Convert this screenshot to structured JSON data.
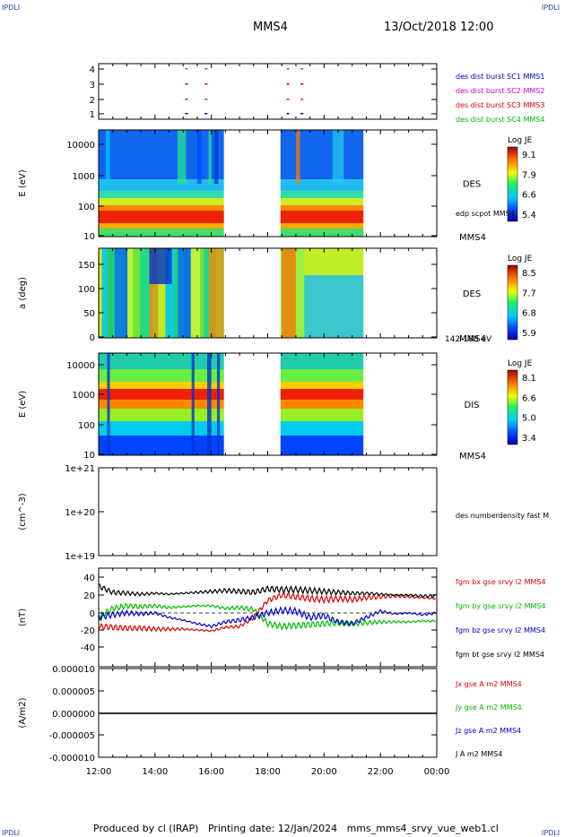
{
  "header": {
    "left_logo": "IPDLI",
    "right_logo": "IPDLI",
    "title": "MMS4",
    "datetime": "13/Oct/2018 12:00"
  },
  "footer": {
    "text": "Produced by cl (IRAP)   Printing date: 12/Jan/2024   mms_mms4_srvy_vue_web1.cl",
    "left_logo": "IPDLI",
    "right_logo": "IPDLI"
  },
  "time_axis": {
    "tick_labels": [
      "12:00",
      "14:00",
      "16:00",
      "18:00",
      "20:00",
      "22:00",
      "00:00"
    ],
    "range_hours": [
      12,
      24
    ]
  },
  "colors": {
    "mms1": "#0000cc",
    "mms2": "#cc00cc",
    "mms3": "#dd0000",
    "mms4": "#00bb00",
    "black": "#000000"
  },
  "chart_data": [
    {
      "id": "burst",
      "type": "scatter",
      "ylim": [
        0.5,
        4.5
      ],
      "yticks": [
        "1",
        "2",
        "3",
        "4"
      ],
      "series": [
        {
          "name": "des dist burst SC1 MMS1",
          "color": "#0000cc",
          "x": [
            15.1,
            15.8,
            18.7,
            19.2
          ],
          "y": [
            1,
            1,
            1,
            1
          ]
        },
        {
          "name": "des dist burst SC2 MMS2",
          "color": "#cc00cc",
          "x": [
            15.1,
            15.8,
            18.7,
            19.2
          ],
          "y": [
            2,
            2,
            2,
            2
          ]
        },
        {
          "name": "des dist burst SC3 MMS3",
          "color": "#dd0000",
          "x": [
            15.1,
            15.8,
            18.7,
            19.2
          ],
          "y": [
            3,
            3,
            3,
            3
          ]
        },
        {
          "name": "des dist burst SC4 MMS4",
          "color": "#00bb00",
          "x": [
            15.1,
            15.8,
            18.7,
            19.2
          ],
          "y": [
            4,
            4,
            4,
            4
          ]
        }
      ]
    },
    {
      "id": "des-energy",
      "type": "heatmap",
      "ylabel": "E (eV)",
      "yscale": "log",
      "ylim": [
        10,
        30000
      ],
      "yticks": [
        "10",
        "100",
        "1000",
        "10000"
      ],
      "label": "DES",
      "extra_label": "edp scpot MMS4",
      "sc_label": "MMS4",
      "colorbar": {
        "title": "Log JE",
        "ticks": [
          "9.1",
          "7.9",
          "6.6",
          "5.4"
        ],
        "range": [
          5.4,
          9.1
        ]
      },
      "data_gaps_hours": [
        [
          16.45,
          18.45
        ],
        [
          21.4,
          24
        ]
      ]
    },
    {
      "id": "des-pitch",
      "type": "heatmap",
      "ylabel": "a (deg)",
      "ylim": [
        0,
        180
      ],
      "yticks": [
        "0",
        "50",
        "100",
        "150"
      ],
      "label": "DES",
      "sc_label": "MMS4",
      "energy_band": "142-188 eV",
      "colorbar": {
        "title": "Log JE",
        "ticks": [
          "8.5",
          "7.7",
          "6.8",
          "5.9"
        ],
        "range": [
          5.9,
          8.5
        ]
      },
      "data_gaps_hours": [
        [
          16.45,
          18.45
        ],
        [
          21.4,
          24
        ]
      ]
    },
    {
      "id": "dis-energy",
      "type": "heatmap",
      "ylabel": "E (eV)",
      "yscale": "log",
      "ylim": [
        10,
        20000
      ],
      "yticks": [
        "10",
        "100",
        "1000",
        "10000"
      ],
      "label": "DIS",
      "sc_label": "MMS4",
      "colorbar": {
        "title": "Log JE",
        "ticks": [
          "8.1",
          "6.6",
          "5.0",
          "3.4"
        ],
        "range": [
          3.4,
          8.1
        ]
      },
      "data_gaps_hours": [
        [
          16.45,
          18.45
        ],
        [
          21.4,
          24
        ]
      ]
    },
    {
      "id": "density",
      "type": "line",
      "ylabel": "(cm^-3)",
      "yscale": "log",
      "ylim": [
        1e+19,
        1e+21
      ],
      "yticks": [
        "1e+19",
        "1e+20",
        "1e+21"
      ],
      "series": [
        {
          "name": "des numberdensity fast M",
          "color": "#000000",
          "x": [],
          "y": []
        }
      ]
    },
    {
      "id": "fgm",
      "type": "line",
      "ylabel": "(nT)",
      "ylim": [
        -45,
        50
      ],
      "yticks": [
        "40",
        "20",
        "0",
        "-20",
        "-40"
      ],
      "series": [
        {
          "name": "fgm bx gse srvy l2 MMS4",
          "color": "#dd0000",
          "x": [
            12,
            12.5,
            13,
            13.5,
            14,
            14.5,
            15,
            15.5,
            16,
            16.5,
            17,
            17.5,
            18,
            18.5,
            19,
            19.5,
            20,
            20.5,
            21,
            21.5,
            22,
            22.5,
            23,
            23.5,
            24
          ],
          "y": [
            -15,
            -16,
            -17,
            -17,
            -18,
            -18,
            -18,
            -19,
            -20,
            -16,
            -15,
            -5,
            14,
            20,
            18,
            16,
            15,
            16,
            15,
            17,
            18,
            19,
            18,
            17,
            16
          ]
        },
        {
          "name": "fgm by gse srvy l2 MMS4",
          "color": "#00bb00",
          "x": [
            12,
            12.5,
            13,
            13.5,
            14,
            14.5,
            15,
            15.5,
            16,
            16.5,
            17,
            17.5,
            18,
            18.5,
            19,
            19.5,
            20,
            20.5,
            21,
            21.5,
            22,
            22.5,
            23,
            23.5,
            24
          ],
          "y": [
            -5,
            5,
            8,
            7,
            8,
            6,
            7,
            8,
            8,
            5,
            6,
            4,
            -12,
            -15,
            -14,
            -13,
            -12,
            -11,
            -12,
            -11,
            -10,
            -10,
            -10,
            -9,
            -9
          ]
        },
        {
          "name": "fgm bz gse srvy l2 MMS4",
          "color": "#0000cc",
          "x": [
            12,
            12.5,
            13,
            13.5,
            14,
            14.5,
            15,
            15.5,
            16,
            16.5,
            17,
            17.5,
            18,
            18.5,
            19,
            19.5,
            20,
            20.5,
            21,
            21.5,
            22,
            22.5,
            23,
            23.5,
            24
          ],
          "y": [
            -5,
            -2,
            0,
            -1,
            0,
            -5,
            -8,
            -12,
            -15,
            -10,
            -8,
            -5,
            0,
            3,
            2,
            -5,
            -3,
            -10,
            -12,
            -5,
            2,
            -1,
            0,
            -2,
            0
          ]
        },
        {
          "name": "fgm bt gse srvy l2 MMS4",
          "color": "#000000",
          "x": [
            12,
            12.5,
            13,
            13.5,
            14,
            14.5,
            15,
            15.5,
            16,
            16.5,
            17,
            17.5,
            18,
            18.5,
            19,
            19.5,
            20,
            20.5,
            21,
            21.5,
            22,
            22.5,
            23,
            23.5,
            24
          ],
          "y": [
            30,
            23,
            22,
            21,
            22,
            21,
            22,
            23,
            24,
            25,
            24,
            23,
            27,
            26,
            26,
            25,
            24,
            23,
            22,
            22,
            21,
            20,
            20,
            19,
            19
          ]
        }
      ]
    },
    {
      "id": "current",
      "type": "line",
      "ylabel": "(A/m2)",
      "ylim": [
        -1e-05,
        1e-05
      ],
      "yticks": [
        "0.000010",
        "0.000005",
        "0.000000",
        "-0.000005",
        "-0.000010"
      ],
      "series": [
        {
          "name": "Jx gse A m2 MMS4",
          "color": "#dd0000",
          "x": [
            12,
            24
          ],
          "y": [
            0,
            0
          ]
        },
        {
          "name": "Jy gse A m2 MMS4",
          "color": "#00bb00",
          "x": [
            12,
            24
          ],
          "y": [
            0,
            0
          ]
        },
        {
          "name": "Jz gse A m2 MMS4",
          "color": "#0000cc",
          "x": [
            12,
            24
          ],
          "y": [
            0,
            0
          ]
        },
        {
          "name": "J A m2 MMS4",
          "color": "#000000",
          "x": [
            12,
            24
          ],
          "y": [
            0,
            0
          ]
        }
      ]
    }
  ]
}
